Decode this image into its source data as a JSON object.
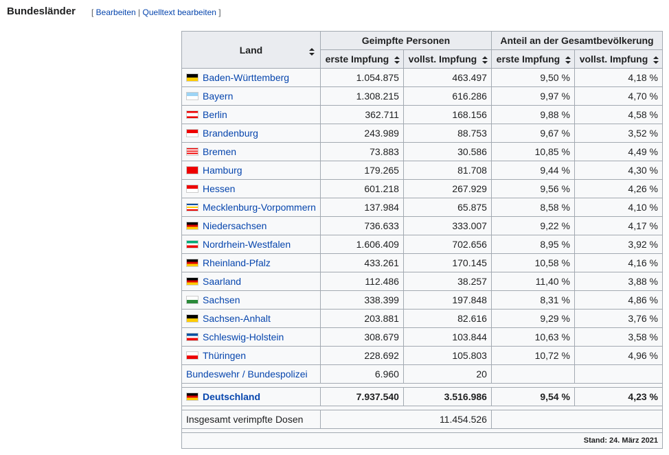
{
  "heading": {
    "title": "Bundesländer",
    "edit": "Bearbeiten",
    "edit_source": "Quelltext bearbeiten"
  },
  "table": {
    "header": {
      "land": "Land",
      "group1": "Geimpfte Personen",
      "group2": "Anteil an der Gesamtbevölkerung",
      "sub": [
        "erste Impfung",
        "vollst. Impfung",
        "erste Impfung",
        "vollst. Impfung"
      ]
    },
    "rows": [
      [
        "Baden-Württemberg",
        "1.054.875",
        "463.497",
        "9,50 %",
        "4,18 %"
      ],
      [
        "Bayern",
        "1.308.215",
        "616.286",
        "9,97 %",
        "4,70 %"
      ],
      [
        "Berlin",
        "362.711",
        "168.156",
        "9,88 %",
        "4,58 %"
      ],
      [
        "Brandenburg",
        "243.989",
        "88.753",
        "9,67 %",
        "3,52 %"
      ],
      [
        "Bremen",
        "73.883",
        "30.586",
        "10,85 %",
        "4,49 %"
      ],
      [
        "Hamburg",
        "179.265",
        "81.708",
        "9,44 %",
        "4,30 %"
      ],
      [
        "Hessen",
        "601.218",
        "267.929",
        "9,56 %",
        "4,26 %"
      ],
      [
        "Mecklenburg-Vorpommern",
        "137.984",
        "65.875",
        "8,58 %",
        "4,10 %"
      ],
      [
        "Niedersachsen",
        "736.633",
        "333.007",
        "9,22 %",
        "4,17 %"
      ],
      [
        "Nordrhein-Westfalen",
        "1.606.409",
        "702.656",
        "8,95 %",
        "3,92 %"
      ],
      [
        "Rheinland-Pfalz",
        "433.261",
        "170.145",
        "10,58 %",
        "4,16 %"
      ],
      [
        "Saarland",
        "112.486",
        "38.257",
        "11,40 %",
        "3,88 %"
      ],
      [
        "Sachsen",
        "338.399",
        "197.848",
        "8,31 %",
        "4,86 %"
      ],
      [
        "Sachsen-Anhalt",
        "203.881",
        "82.616",
        "9,29 %",
        "3,76 %"
      ],
      [
        "Schleswig-Holstein",
        "308.679",
        "103.844",
        "10,63 %",
        "3,58 %"
      ],
      [
        "Thüringen",
        "228.692",
        "105.803",
        "10,72 %",
        "4,96 %"
      ],
      [
        "Bundeswehr / Bundespolizei",
        "6.960",
        "20"
      ]
    ],
    "total": [
      "Deutschland",
      "7.937.540",
      "3.516.986",
      "9,54 %",
      "4,23 %"
    ],
    "doses": [
      "Insgesamt verimpfte Dosen",
      "11.454.526"
    ],
    "footnote": "Stand: 24. März 2021"
  }
}
